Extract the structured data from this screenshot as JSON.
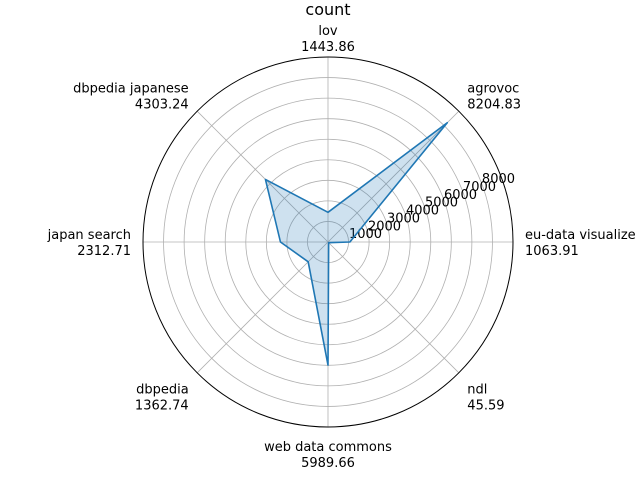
{
  "chart_data": {
    "type": "radar",
    "title": "count",
    "categories": [
      "lov",
      "agrovoc",
      "eu-data visualize",
      "ndl",
      "web data commons",
      "dbpedia",
      "japan search",
      "dbpedia japanese"
    ],
    "values": [
      1443.86,
      8204.83,
      1063.91,
      45.59,
      5989.66,
      1362.74,
      2312.71,
      4303.24
    ],
    "value_labels": [
      "1443.86",
      "8204.83",
      "1063.91",
      "45.59",
      "5989.66",
      "1362.74",
      "2312.71",
      "4303.24"
    ],
    "rmax": 9000,
    "radial_ticks": [
      1000,
      2000,
      3000,
      4000,
      5000,
      6000,
      7000,
      8000
    ],
    "grid": true,
    "colors": {
      "line": "#1f77b4",
      "fill": "#1f77b4",
      "grid": "#b0b0b0",
      "spine": "#000000"
    }
  }
}
